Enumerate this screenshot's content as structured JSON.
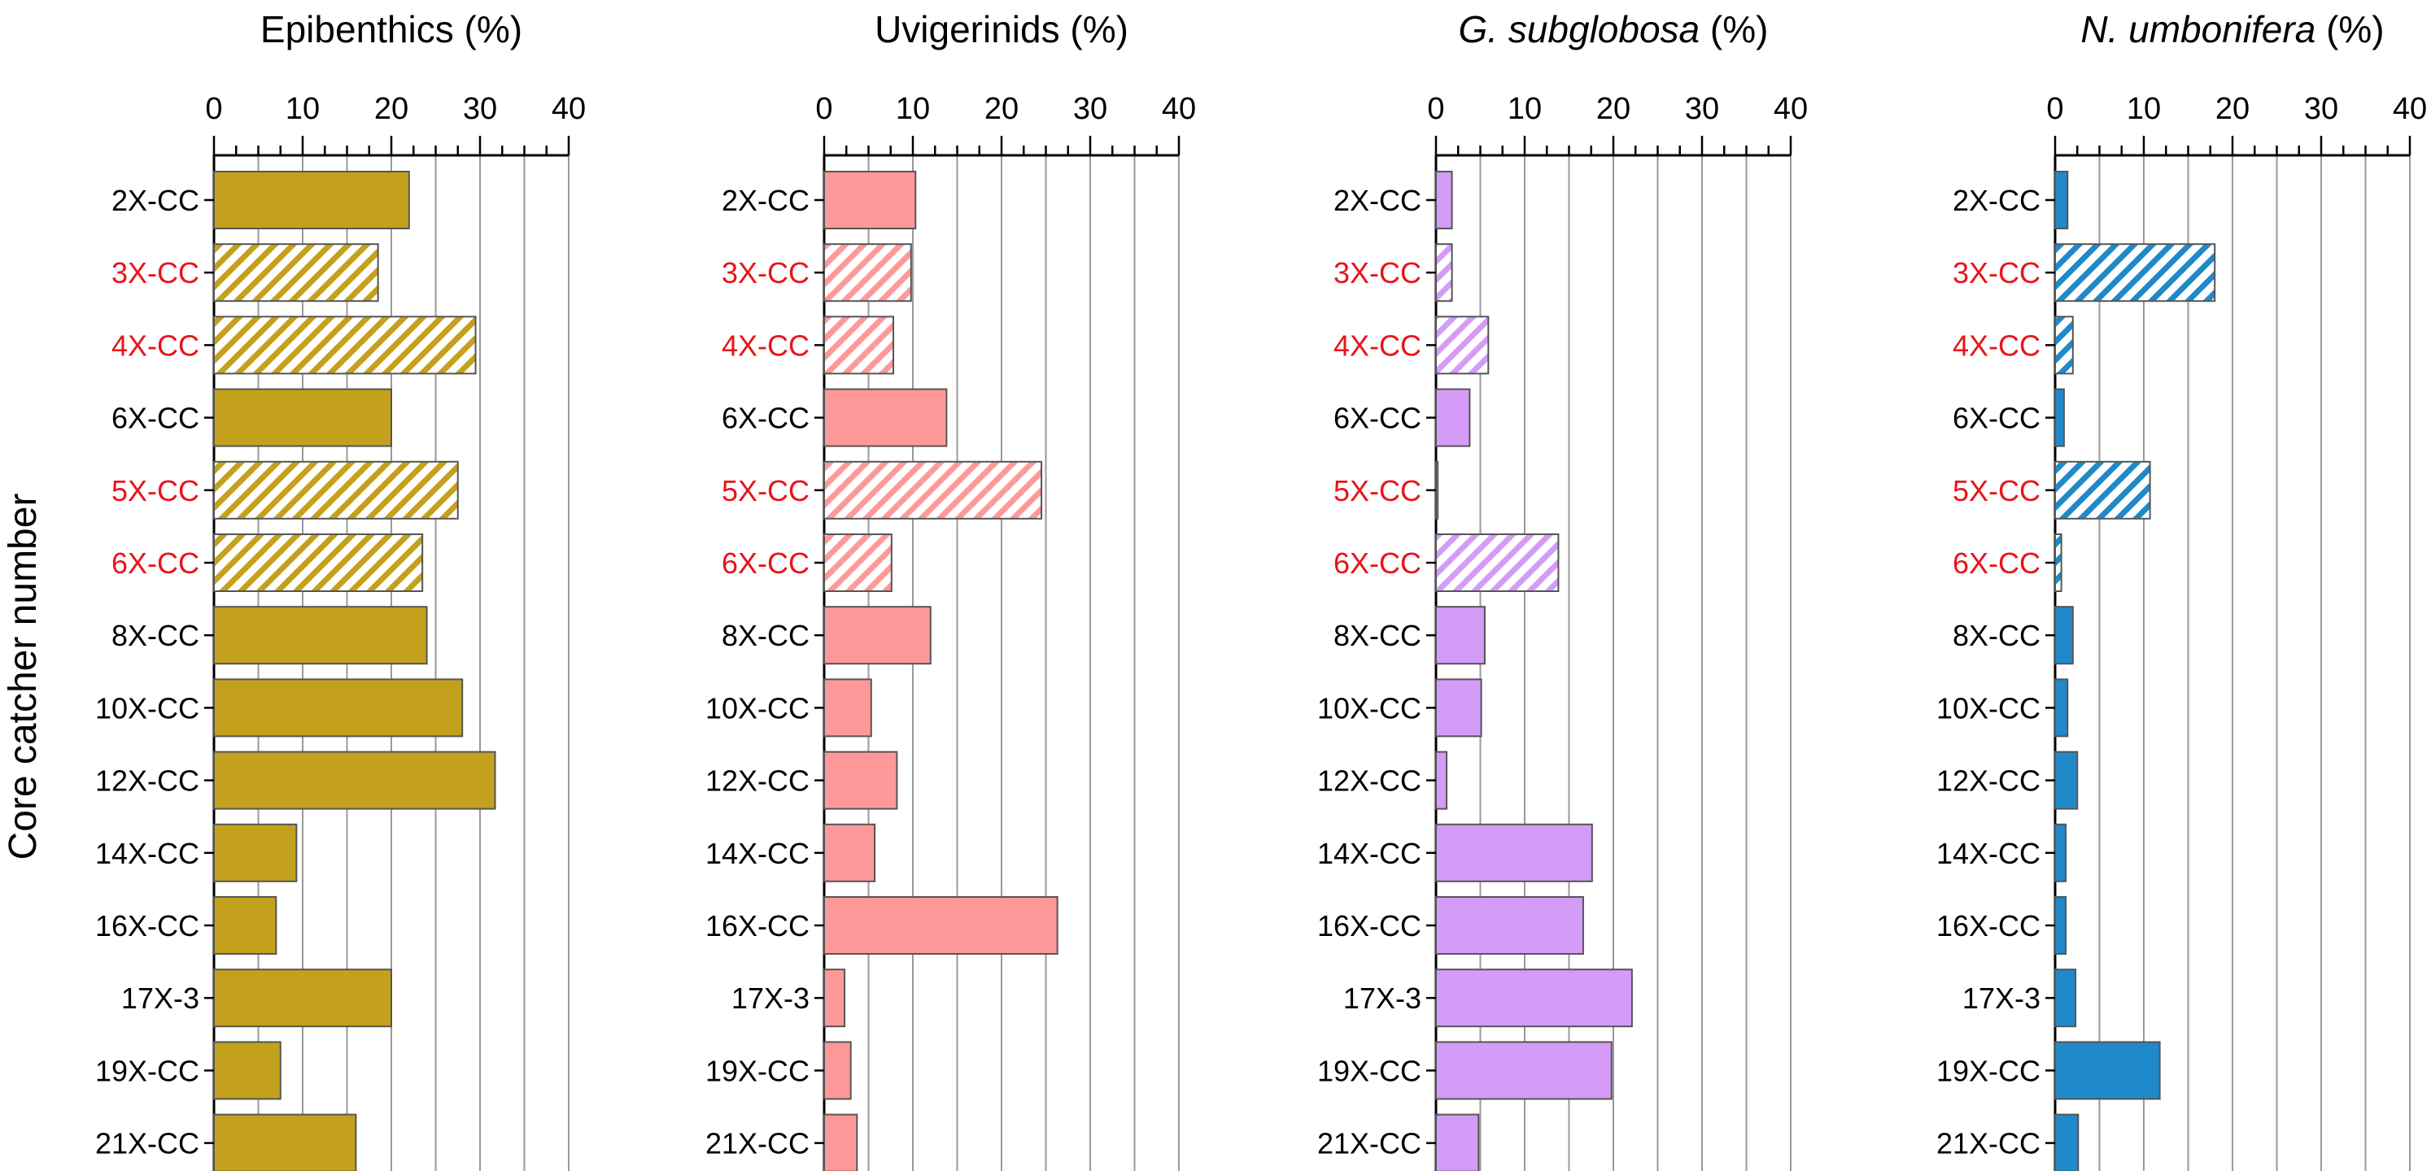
{
  "chart_data": {
    "type": "bar",
    "orientation": "horizontal",
    "ylabel": "Core catcher number",
    "categories": [
      "2X-CC",
      "3X-CC",
      "4X-CC",
      "6X-CC",
      "5X-CC",
      "6X-CC",
      "8X-CC",
      "10X-CC",
      "12X-CC",
      "14X-CC",
      "16X-CC",
      "17X-3",
      "19X-CC",
      "21X-CC"
    ],
    "category_colors": [
      "#000000",
      "#e8141b",
      "#e8141b",
      "#000000",
      "#e8141b",
      "#e8141b",
      "#000000",
      "#000000",
      "#000000",
      "#000000",
      "#000000",
      "#000000",
      "#000000",
      "#000000"
    ],
    "hatched": [
      false,
      true,
      true,
      false,
      true,
      true,
      false,
      false,
      false,
      false,
      false,
      false,
      false,
      false
    ],
    "xlim": [
      0,
      40
    ],
    "xticks": [
      "0",
      "10",
      "20",
      "30",
      "40"
    ],
    "grid": "vertical",
    "panels": [
      {
        "title_italic": "",
        "title_plain": "Epibenthics (%)",
        "color": "#c4a11c",
        "values": [
          22,
          18.5,
          29.5,
          20,
          27.5,
          23.5,
          24,
          28,
          31.7,
          9.3,
          7,
          20,
          7.5,
          16
        ]
      },
      {
        "title_italic": "",
        "title_plain": "Uvigerinids (%)",
        "color": "#ff9999",
        "values": [
          10.3,
          9.8,
          7.8,
          13.8,
          24.5,
          7.6,
          12,
          5.3,
          8.2,
          5.7,
          26.3,
          2.3,
          3,
          3.7
        ]
      },
      {
        "title_italic": "G. subglobosa",
        "title_plain": " (%)",
        "color": "#d49cf6",
        "values": [
          1.8,
          1.8,
          5.9,
          3.8,
          0.2,
          13.8,
          5.5,
          5.1,
          1.2,
          17.6,
          16.6,
          22.1,
          19.8,
          4.8
        ]
      },
      {
        "title_italic": "N. umbonifera",
        "title_plain": " (%)",
        "color": "#1f89c9",
        "values": [
          1.4,
          18,
          2,
          1,
          10.7,
          0.7,
          2,
          1.4,
          2.5,
          1.2,
          1.2,
          2.3,
          11.8,
          2.6
        ]
      }
    ]
  }
}
